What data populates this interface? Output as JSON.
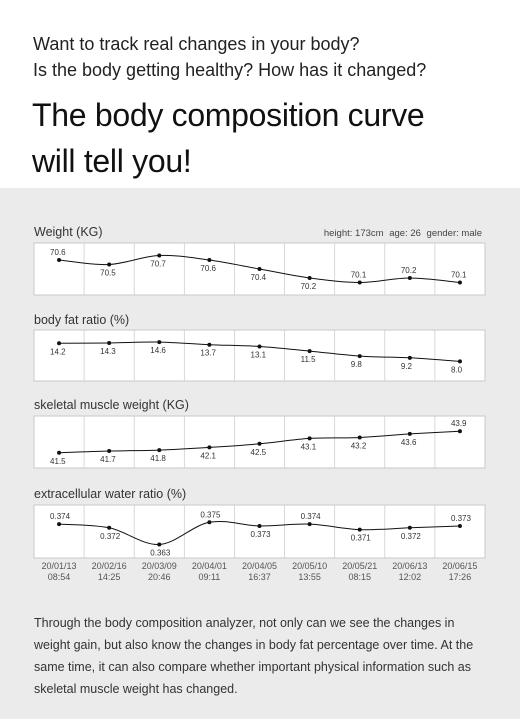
{
  "header": {
    "intro_line1": "Want to track real changes in your body?",
    "intro_line2": "Is the body getting healthy? How has it changed?",
    "title_line1": "The body composition curve",
    "title_line2": "will tell you!"
  },
  "profile": {
    "height": "height: 173cm",
    "age": "age: 26",
    "gender": "gender: male"
  },
  "footer": {
    "text": "Through the body composition analyzer, not only can we see the changes in weight gain, but also know the changes in body fat percentage over time. At the same time, it can also compare whether important physical information such as skeletal muscle weight has changed."
  },
  "colors": {
    "line": "#111111",
    "panel_bg": "#ebebeb",
    "chart_bg": "#ffffff",
    "grid": "#cfcfcf"
  },
  "chart_data": [
    {
      "type": "line",
      "title": "Weight (KG)",
      "x": [
        "20/01/13 08:54",
        "20/02/16 14:25",
        "20/03/09 20:46",
        "20/04/01 09:11",
        "20/04/05 16:37",
        "20/05/10 13:55",
        "20/05/21 08:15",
        "20/06/13 12:02",
        "20/06/15 17:26"
      ],
      "values": [
        70.6,
        70.5,
        70.7,
        70.6,
        70.4,
        70.2,
        70.1,
        70.2,
        70.1
      ],
      "labels": [
        "70.6",
        "70.5",
        "70.7",
        "70.6",
        "70.4",
        "70.2",
        "70.1",
        "70.2",
        "70.1"
      ],
      "ylim": [
        70.0,
        70.8
      ],
      "grid": true
    },
    {
      "type": "line",
      "title": "body fat ratio (%)",
      "x": [
        "20/01/13 08:54",
        "20/02/16 14:25",
        "20/03/09 20:46",
        "20/04/01 09:11",
        "20/04/05 16:37",
        "20/05/10 13:55",
        "20/05/21 08:15",
        "20/06/13 12:02",
        "20/06/15 17:26"
      ],
      "values": [
        14.2,
        14.3,
        14.6,
        13.7,
        13.1,
        11.5,
        9.8,
        9.2,
        8.0
      ],
      "labels": [
        "14.2",
        "14.3",
        "14.6",
        "13.7",
        "13.1",
        "11.5",
        "9.8",
        "9.2",
        "8.0"
      ],
      "ylim": [
        4,
        16
      ],
      "grid": true
    },
    {
      "type": "line",
      "title": "skeletal muscle weight (KG)",
      "x": [
        "20/01/13 08:54",
        "20/02/16 14:25",
        "20/03/09 20:46",
        "20/04/01 09:11",
        "20/04/05 16:37",
        "20/05/10 13:55",
        "20/05/21 08:15",
        "20/06/13 12:02",
        "20/06/15 17:26"
      ],
      "values": [
        41.5,
        41.7,
        41.8,
        42.1,
        42.5,
        43.1,
        43.2,
        43.6,
        43.9
      ],
      "labels": [
        "41.5",
        "41.7",
        "41.8",
        "42.1",
        "42.5",
        "43.1",
        "43.2",
        "43.6",
        "43.9"
      ],
      "ylim": [
        40.7,
        44.7
      ],
      "grid": true
    },
    {
      "type": "line",
      "title": "extracellular water ratio (%)",
      "x": [
        "20/01/13 08:54",
        "20/02/16 14:25",
        "20/03/09 20:46",
        "20/04/01 09:11",
        "20/04/05 16:37",
        "20/05/10 13:55",
        "20/05/21 08:15",
        "20/06/13 12:02",
        "20/06/15 17:26"
      ],
      "values": [
        0.374,
        0.372,
        0.363,
        0.375,
        0.373,
        0.374,
        0.371,
        0.372,
        0.373
      ],
      "labels": [
        "0.374",
        "0.372",
        "0.363",
        "0.375",
        "0.373",
        "0.374",
        "0.371",
        "0.372",
        "0.373"
      ],
      "ylim": [
        0.36,
        0.38
      ],
      "grid": true,
      "x_tick_labels": [
        [
          "20/01/13",
          "08:54"
        ],
        [
          "20/02/16",
          "14:25"
        ],
        [
          "20/03/09",
          "20:46"
        ],
        [
          "20/04/01",
          "09:11"
        ],
        [
          "20/04/05",
          "16:37"
        ],
        [
          "20/05/10",
          "13:55"
        ],
        [
          "20/05/21",
          "08:15"
        ],
        [
          "20/06/13",
          "12:02"
        ],
        [
          "20/06/15",
          "17:26"
        ]
      ]
    }
  ]
}
